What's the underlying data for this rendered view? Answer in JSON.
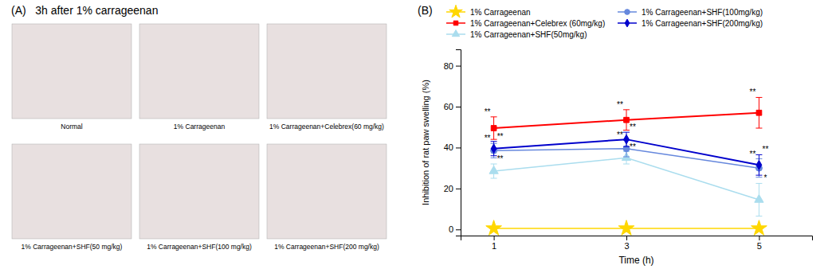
{
  "chart_data": [
    {
      "type": "image_grid",
      "title": "(A)   3h after 1% carrageenan",
      "categories": [
        "Normal",
        "1% Carrageenan",
        "1% Carrageenan+Celebrex(60 mg/kg)",
        "1% Carrageenan+SHF(50 mg/kg)",
        "1% Carrageenan+SHF(100 mg/kg)",
        "1% Carrageenan+SHF(200 mg/kg)"
      ]
    },
    {
      "type": "line",
      "title": "(B)",
      "xlabel": "Time (h)",
      "ylabel": "Inhibition of rat paw swelling (%)",
      "x": [
        1,
        3,
        5
      ],
      "xlim": [
        0.5,
        5.8
      ],
      "xticks": [
        1,
        3,
        5
      ],
      "ylim": [
        -3,
        88
      ],
      "yticks": [
        0,
        20,
        40,
        60,
        80
      ],
      "grid": false,
      "legend": "upper left",
      "series": [
        {
          "name": "1% Carrageenan",
          "color": "#FFD700",
          "marker": "star",
          "line_style": "solid",
          "values": [
            0.5,
            0.5,
            0.5
          ],
          "yerr": [
            0.3,
            0.3,
            0.3
          ]
        },
        {
          "name": "1% Carrageenan+Celebrex (60mg/kg)",
          "color": "#FF0000",
          "marker": "square",
          "line_style": "solid",
          "values": [
            49.5,
            53.5,
            57.0
          ],
          "yerr": [
            5.5,
            5.0,
            7.5
          ],
          "annotations": [
            "**",
            "**",
            "**"
          ]
        },
        {
          "name": "1% Carrageenan+SHF(50mg/kg)",
          "color": "#AADDEE",
          "marker": "triangle",
          "line_style": "solid",
          "values": [
            28.5,
            35.0,
            14.5
          ],
          "yerr": [
            3.5,
            3.0,
            8.0
          ],
          "annotations": [
            "**",
            "**",
            "*"
          ]
        },
        {
          "name": "1% Carrageenan+SHF(100mg/kg)",
          "color": "#6688DD",
          "marker": "circle",
          "line_style": "solid",
          "values": [
            38.5,
            39.5,
            30.0
          ],
          "yerr": [
            3.5,
            4.0,
            4.5
          ],
          "annotations": [
            "**",
            "**",
            "**"
          ]
        },
        {
          "name": "1% Carrageenan+SHF(200mg/kg)",
          "color": "#0000CC",
          "marker": "diamond",
          "line_style": "solid",
          "values": [
            39.5,
            44.0,
            31.5
          ],
          "yerr": [
            3.5,
            3.5,
            5.0
          ],
          "annotations": [
            "**",
            "**",
            "**"
          ]
        }
      ]
    }
  ]
}
